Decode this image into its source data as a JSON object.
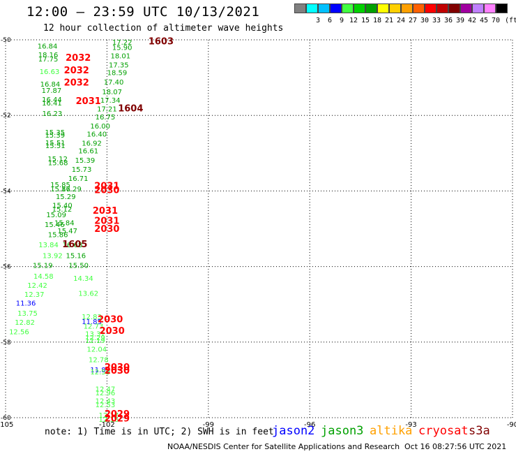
{
  "header": {
    "title": "12:00 — 23:59 UTC 10/13/2021",
    "subtitle": "12 hour collection of altimeter wave heights"
  },
  "legend": {
    "unit": "(ft)",
    "bins": [
      {
        "label": "",
        "color": "#808080"
      },
      {
        "label": "3",
        "color": "#00ffff"
      },
      {
        "label": "6",
        "color": "#00c0ff"
      },
      {
        "label": "9",
        "color": "#0000ff"
      },
      {
        "label": "12",
        "color": "#40ff40"
      },
      {
        "label": "15",
        "color": "#00d000"
      },
      {
        "label": "18",
        "color": "#00a000"
      },
      {
        "label": "21",
        "color": "#ffff00"
      },
      {
        "label": "24",
        "color": "#ffd000"
      },
      {
        "label": "27",
        "color": "#ffa000"
      },
      {
        "label": "30",
        "color": "#ff6000"
      },
      {
        "label": "33",
        "color": "#ff0000"
      },
      {
        "label": "36",
        "color": "#c00000"
      },
      {
        "label": "39",
        "color": "#800000"
      },
      {
        "label": "42",
        "color": "#a000a0"
      },
      {
        "label": "45",
        "color": "#c080ff"
      },
      {
        "label": "70",
        "color": "#ff80ff"
      },
      {
        "label": "",
        "color": "#000000"
      }
    ]
  },
  "map": {
    "lon_range": [
      -105,
      -90
    ],
    "lat_range": [
      -60,
      -50
    ],
    "lon_ticks": [
      "-105",
      "-102",
      "-99",
      "-96",
      "-93",
      "-90"
    ],
    "lat_ticks": [
      "-50",
      "-52",
      "-54",
      "-56",
      "-58",
      "-60"
    ],
    "gridlines": "dotted"
  },
  "observations": [
    {
      "lon": -103.76,
      "lat": -50.16,
      "text": "16.84",
      "color": "#00a000"
    },
    {
      "lon": -103.74,
      "lat": -50.39,
      "text": "18.16",
      "color": "#00a000"
    },
    {
      "lon": -103.74,
      "lat": -50.5,
      "text": "17.75",
      "color": "#00a000"
    },
    {
      "lon": -103.7,
      "lat": -50.83,
      "text": "16.63",
      "color": "#40ff40"
    },
    {
      "lon": -103.68,
      "lat": -51.16,
      "text": "16.84",
      "color": "#00a000"
    },
    {
      "lon": -103.64,
      "lat": -51.33,
      "text": "17.87",
      "color": "#00a000"
    },
    {
      "lon": -103.63,
      "lat": -51.57,
      "text": "16.44",
      "color": "#00a000"
    },
    {
      "lon": -103.63,
      "lat": -51.66,
      "text": "16.41",
      "color": "#00a000"
    },
    {
      "lon": -103.62,
      "lat": -51.94,
      "text": "16.23",
      "color": "#00a000"
    },
    {
      "lon": -103.54,
      "lat": -52.44,
      "text": "15.35",
      "color": "#00a000"
    },
    {
      "lon": -103.54,
      "lat": -52.51,
      "text": "15.39",
      "color": "#00a000"
    },
    {
      "lon": -103.53,
      "lat": -52.72,
      "text": "15.51",
      "color": "#00a000"
    },
    {
      "lon": -103.53,
      "lat": -52.79,
      "text": "15.51",
      "color": "#00a000"
    },
    {
      "lon": -103.46,
      "lat": -53.14,
      "text": "15.12",
      "color": "#00a000"
    },
    {
      "lon": -103.45,
      "lat": -53.24,
      "text": "15.68",
      "color": "#00a000"
    },
    {
      "lon": -103.38,
      "lat": -53.83,
      "text": "15.85",
      "color": "#00a000"
    },
    {
      "lon": -103.38,
      "lat": -53.94,
      "text": "15.87",
      "color": "#00a000"
    },
    {
      "lon": -103.22,
      "lat": -54.14,
      "text": "15.29",
      "color": "#00a000"
    },
    {
      "lon": -103.32,
      "lat": -54.37,
      "text": "15.40",
      "color": "#00a000"
    },
    {
      "lon": -103.33,
      "lat": -54.47,
      "text": "15.12",
      "color": "#00a000"
    },
    {
      "lon": -103.5,
      "lat": -54.62,
      "text": "15.09",
      "color": "#00a000"
    },
    {
      "lon": -103.26,
      "lat": -54.83,
      "text": "15.84",
      "color": "#00a000"
    },
    {
      "lon": -103.55,
      "lat": -54.88,
      "text": "15.46",
      "color": "#00a000"
    },
    {
      "lon": -103.17,
      "lat": -55.05,
      "text": "15.47",
      "color": "#00a000"
    },
    {
      "lon": -103.45,
      "lat": -55.15,
      "text": "15.86",
      "color": "#00a000"
    },
    {
      "lon": -103.73,
      "lat": -55.42,
      "text": "13.84",
      "color": "#40ff40"
    },
    {
      "lon": -103.02,
      "lat": -55.42,
      "text": "16.68",
      "color": "#00a000"
    },
    {
      "lon": -103.61,
      "lat": -55.7,
      "text": "13.92",
      "color": "#40ff40"
    },
    {
      "lon": -102.92,
      "lat": -55.7,
      "text": "15.16",
      "color": "#00a000"
    },
    {
      "lon": -103.9,
      "lat": -55.96,
      "text": "15.19",
      "color": "#00a000"
    },
    {
      "lon": -102.84,
      "lat": -55.96,
      "text": "15.50",
      "color": "#00a000"
    },
    {
      "lon": -103.88,
      "lat": -56.25,
      "text": "14.58",
      "color": "#40ff40"
    },
    {
      "lon": -102.7,
      "lat": -56.3,
      "text": "14.34",
      "color": "#40ff40"
    },
    {
      "lon": -104.06,
      "lat": -56.49,
      "text": "12.42",
      "color": "#40ff40"
    },
    {
      "lon": -104.15,
      "lat": -56.73,
      "text": "12.37",
      "color": "#40ff40"
    },
    {
      "lon": -102.55,
      "lat": -56.7,
      "text": "13.62",
      "color": "#40ff40"
    },
    {
      "lon": -104.4,
      "lat": -56.96,
      "text": "11.36",
      "color": "#0000ff"
    },
    {
      "lon": -104.35,
      "lat": -57.23,
      "text": "13.75",
      "color": "#40ff40"
    },
    {
      "lon": -104.43,
      "lat": -57.47,
      "text": "12.82",
      "color": "#40ff40"
    },
    {
      "lon": -104.6,
      "lat": -57.72,
      "text": "12.56",
      "color": "#40ff40"
    },
    {
      "lon": -102.45,
      "lat": -57.32,
      "text": "12.83",
      "color": "#40ff40"
    },
    {
      "lon": -102.45,
      "lat": -57.45,
      "text": "11.85",
      "color": "#0000ff"
    },
    {
      "lon": -102.4,
      "lat": -57.57,
      "text": "12.73",
      "color": "#40ff40"
    },
    {
      "lon": -102.35,
      "lat": -57.77,
      "text": "13.31",
      "color": "#40ff40"
    },
    {
      "lon": -102.35,
      "lat": -57.87,
      "text": "12.29",
      "color": "#40ff40"
    },
    {
      "lon": -102.35,
      "lat": -57.95,
      "text": "12.19",
      "color": "#40ff40"
    },
    {
      "lon": -102.3,
      "lat": -58.18,
      "text": "12.04",
      "color": "#40ff40"
    },
    {
      "lon": -102.25,
      "lat": -58.46,
      "text": "12.78",
      "color": "#40ff40"
    },
    {
      "lon": -102.2,
      "lat": -58.72,
      "text": "11.88",
      "color": "#0000ff"
    },
    {
      "lon": -102.2,
      "lat": -58.78,
      "text": "12.59",
      "color": "#40ff40"
    },
    {
      "lon": -102.05,
      "lat": -59.23,
      "text": "12.47",
      "color": "#40ff40"
    },
    {
      "lon": -102.05,
      "lat": -59.33,
      "text": "12.96",
      "color": "#40ff40"
    },
    {
      "lon": -102.05,
      "lat": -59.55,
      "text": "12.43",
      "color": "#40ff40"
    },
    {
      "lon": -102.05,
      "lat": -59.65,
      "text": "12.53",
      "color": "#40ff40"
    },
    {
      "lon": -101.95,
      "lat": -59.93,
      "text": "12.17",
      "color": "#40ff40"
    },
    {
      "lon": -101.95,
      "lat": -60.04,
      "text": "12.16",
      "color": "#40ff40"
    },
    {
      "lon": -101.55,
      "lat": -50.06,
      "text": "17.22",
      "color": "#00a000"
    },
    {
      "lon": -101.55,
      "lat": -50.19,
      "text": "15.90",
      "color": "#00a000"
    },
    {
      "lon": -101.6,
      "lat": -50.42,
      "text": "18.01",
      "color": "#00a000"
    },
    {
      "lon": -101.65,
      "lat": -50.66,
      "text": "17.35",
      "color": "#00a000"
    },
    {
      "lon": -101.7,
      "lat": -50.86,
      "text": "18.59",
      "color": "#00a000"
    },
    {
      "lon": -101.8,
      "lat": -51.11,
      "text": "17.40",
      "color": "#00a000"
    },
    {
      "lon": -101.85,
      "lat": -51.37,
      "text": "18.07",
      "color": "#00a000"
    },
    {
      "lon": -101.9,
      "lat": -51.59,
      "text": "17.34",
      "color": "#00a000"
    },
    {
      "lon": -102.0,
      "lat": -51.82,
      "text": "17.21",
      "color": "#00a000"
    },
    {
      "lon": -102.05,
      "lat": -52.03,
      "text": "16.75",
      "color": "#00a000"
    },
    {
      "lon": -102.2,
      "lat": -52.27,
      "text": "16.00",
      "color": "#00a000"
    },
    {
      "lon": -102.3,
      "lat": -52.49,
      "text": "16.40",
      "color": "#00a000"
    },
    {
      "lon": -102.45,
      "lat": -52.73,
      "text": "16.92",
      "color": "#00a000"
    },
    {
      "lon": -102.55,
      "lat": -52.93,
      "text": "16.61",
      "color": "#00a000"
    },
    {
      "lon": -102.65,
      "lat": -53.18,
      "text": "15.39",
      "color": "#00a000"
    },
    {
      "lon": -102.75,
      "lat": -53.42,
      "text": "15.73",
      "color": "#00a000"
    },
    {
      "lon": -102.85,
      "lat": -53.66,
      "text": "16.71",
      "color": "#00a000"
    },
    {
      "lon": -103.05,
      "lat": -53.94,
      "text": "16.29",
      "color": "#00a000"
    },
    {
      "lon": -100.4,
      "lat": -50.05,
      "text": "1603",
      "color": "#800000"
    },
    {
      "lon": -101.3,
      "lat": -51.82,
      "text": "1604",
      "color": "#800000"
    },
    {
      "lon": -102.95,
      "lat": -55.42,
      "text": "1605",
      "color": "#800000"
    },
    {
      "lon": -102.85,
      "lat": -50.48,
      "text": "2032",
      "color": "#ff0000"
    },
    {
      "lon": -102.9,
      "lat": -50.81,
      "text": "2032",
      "color": "#ff0000"
    },
    {
      "lon": -102.9,
      "lat": -51.14,
      "text": "2032",
      "color": "#ff0000"
    },
    {
      "lon": -102.55,
      "lat": -51.63,
      "text": "2031",
      "color": "#ff0000"
    },
    {
      "lon": -102.0,
      "lat": -53.87,
      "text": "2031",
      "color": "#ff0000"
    },
    {
      "lon": -102.0,
      "lat": -53.98,
      "text": "2030",
      "color": "#ff0000"
    },
    {
      "lon": -102.05,
      "lat": -54.53,
      "text": "2031",
      "color": "#ff0000"
    },
    {
      "lon": -102.0,
      "lat": -54.8,
      "text": "2031",
      "color": "#ff0000"
    },
    {
      "lon": -102.0,
      "lat": -55.01,
      "text": "2030",
      "color": "#ff0000"
    },
    {
      "lon": -101.9,
      "lat": -57.4,
      "text": "2030",
      "color": "#ff0000"
    },
    {
      "lon": -101.85,
      "lat": -57.71,
      "text": "2030",
      "color": "#ff0000"
    },
    {
      "lon": -101.7,
      "lat": -58.67,
      "text": "2030",
      "color": "#ff0000"
    },
    {
      "lon": -101.7,
      "lat": -58.76,
      "text": "2030",
      "color": "#ff0000"
    },
    {
      "lon": -101.7,
      "lat": -59.91,
      "text": "2029",
      "color": "#ff0000"
    },
    {
      "lon": -101.7,
      "lat": -60.03,
      "text": "2029",
      "color": "#ff0000"
    }
  ],
  "footer": {
    "note": "note: 1) Time is in UTC; 2) SWH is in feet",
    "satellites": [
      {
        "name": "jason2",
        "color": "#0000ff"
      },
      {
        "name": "jason3",
        "color": "#00a000"
      },
      {
        "name": "altika",
        "color": "#ffa000"
      },
      {
        "name": "cryosat",
        "color": "#ff0000"
      },
      {
        "name": "s3a",
        "color": "#800000"
      }
    ],
    "credit": "NOAA/NESDIS Center for Satellite Applications and Research",
    "timestamp": "Oct 16 08:27:56 UTC 2021"
  }
}
